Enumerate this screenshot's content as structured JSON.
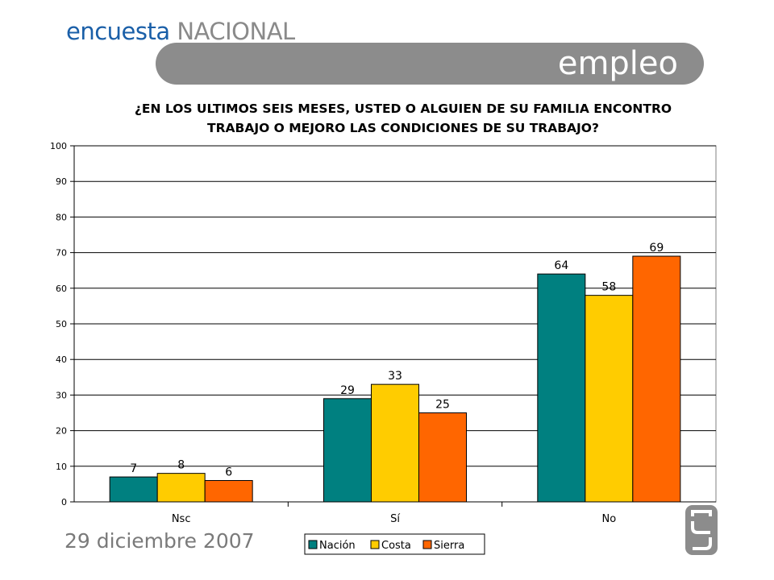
{
  "header": {
    "brand_part1": "encuesta",
    "brand_part2": "NACIONAL",
    "section_title": "empleo",
    "question_line1": "¿EN LOS ULTIMOS SEIS MESES, USTED O ALGUIEN DE SU FAMILIA ENCONTRO",
    "question_line2": "TRABAJO O MEJORO LAS CONDICIONES DE SU TRABAJO?"
  },
  "footer": {
    "date": "29 diciembre 2007"
  },
  "colors": {
    "brand_blue": "#1a5fa8",
    "brand_gray": "#8a8a8a",
    "section_bar": "#8c8c8c"
  },
  "chart_data": {
    "type": "bar",
    "categories": [
      "Nsc",
      "Sí",
      "No"
    ],
    "series": [
      {
        "name": "Nación",
        "values": [
          7,
          29,
          64
        ],
        "color": "#008080"
      },
      {
        "name": "Costa",
        "values": [
          8,
          33,
          58
        ],
        "color": "#ffcc00"
      },
      {
        "name": "Sierra",
        "values": [
          6,
          25,
          69
        ],
        "color": "#ff6600"
      }
    ],
    "yticks": [
      0,
      10,
      20,
      30,
      40,
      50,
      60,
      70,
      80,
      90,
      100
    ],
    "ylim": [
      0,
      100
    ],
    "grid": true,
    "legend_position": "bottom-center",
    "data_labels": true
  }
}
